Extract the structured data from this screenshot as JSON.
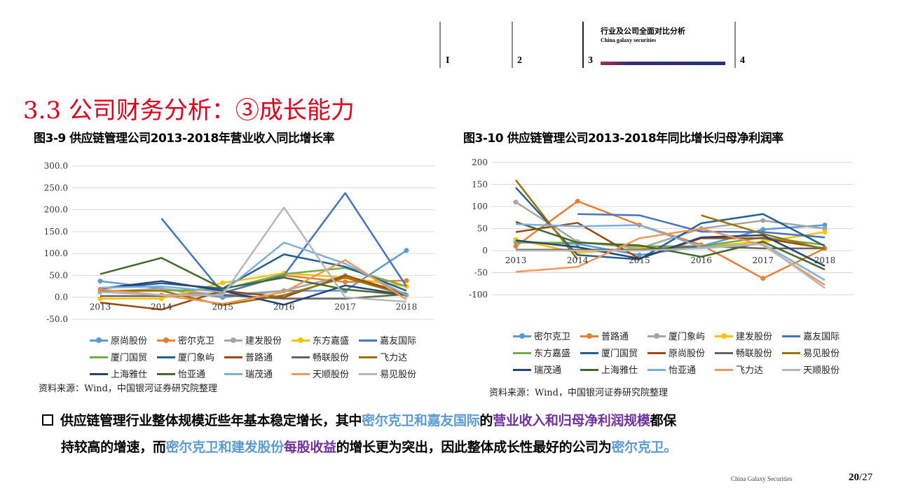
{
  "header": {
    "sections": [
      "I",
      "2",
      "3",
      "4"
    ],
    "active_title": "行业及公司全面对比分析",
    "active_subtitle": "China galaxy securities"
  },
  "title": "3.3 公司财务分析：③成长能力",
  "colors": {
    "title": "#e3001b",
    "highlight_blue": "#5b9bd5",
    "highlight_purple": "#7030a0"
  },
  "chart_data": [
    {
      "type": "line",
      "title": "图3-9 供应链管理公司2013-2018年营业收入同比增长率",
      "x": [
        "2013",
        "2014",
        "2015",
        "2016",
        "2017",
        "2018"
      ],
      "ylim": [
        -50,
        300
      ],
      "yticks": [
        "300.0",
        "250.0",
        "200.0",
        "150.0",
        "100.0",
        "50.0",
        "0.0",
        "-50.0"
      ],
      "grid": true,
      "legend": "bottom",
      "series": [
        {
          "name": "原尚股份",
          "color": "#5B9BD5",
          "marker": true,
          "values": [
            37,
            20,
            0,
            15,
            15,
            107
          ]
        },
        {
          "name": "密尔克卫",
          "color": "#ED7D31",
          "marker": true,
          "values": [
            18,
            5,
            10,
            50,
            35,
            38
          ]
        },
        {
          "name": "建发股份",
          "color": "#A5A5A5",
          "marker": true,
          "values": [
            12,
            20,
            5,
            15,
            50,
            5
          ]
        },
        {
          "name": "东方嘉盛",
          "color": "#FFC000",
          "marker": true,
          "values": [
            -3,
            -3,
            33,
            55,
            45,
            25
          ]
        },
        {
          "name": "嘉友国际",
          "color": "#4472C4",
          "values": [
            null,
            180,
            10,
            50,
            238,
            25
          ]
        },
        {
          "name": "厦门国贸",
          "color": "#70AD47",
          "values": [
            15,
            15,
            18,
            53,
            67,
            25
          ]
        },
        {
          "name": "厦门象屿",
          "color": "#255E91",
          "values": [
            20,
            32,
            20,
            98,
            70,
            15
          ]
        },
        {
          "name": "普路通",
          "color": "#9E480E",
          "values": [
            -12,
            -28,
            15,
            0,
            50,
            8
          ]
        },
        {
          "name": "畅联股份",
          "color": "#636363",
          "values": [
            3,
            3,
            5,
            -3,
            -3,
            7
          ]
        },
        {
          "name": "飞力达",
          "color": "#997300",
          "values": [
            15,
            15,
            -18,
            5,
            45,
            5
          ]
        },
        {
          "name": "上海雅仕",
          "color": "#264478",
          "values": [
            20,
            37,
            15,
            -17,
            27,
            5
          ]
        },
        {
          "name": "怡亚通",
          "color": "#43682B",
          "values": [
            53,
            90,
            20,
            45,
            18,
            5
          ]
        },
        {
          "name": "瑞茂通",
          "color": "#7CAFDD",
          "values": [
            22,
            25,
            12,
            125,
            77,
            5
          ]
        },
        {
          "name": "天顺股份",
          "color": "#F1975A",
          "values": [
            18,
            5,
            -15,
            12,
            85,
            -5
          ]
        },
        {
          "name": "易见股份",
          "color": "#B7B7B7",
          "values": [
            12,
            5,
            5,
            205,
            0,
            -10
          ]
        }
      ],
      "source": "资料来源：Wind，中国银河证券研究院整理"
    },
    {
      "type": "line",
      "title": "图3-10 供应链管理公司2013-2018年同比增长归母净利润率",
      "x": [
        "2013",
        "2014",
        "2015",
        "2016",
        "2017",
        "2018"
      ],
      "ylim": [
        -100,
        200
      ],
      "yticks": [
        "200",
        "150",
        "100",
        "50",
        "0",
        "-50",
        "-100"
      ],
      "grid": true,
      "legend": "bottom",
      "series": [
        {
          "name": "密尔克卫",
          "color": "#5B9BD5",
          "marker": true,
          "values": [
            20,
            15,
            -10,
            10,
            48,
            58
          ]
        },
        {
          "name": "普路通",
          "color": "#ED7D31",
          "marker": true,
          "values": [
            10,
            112,
            58,
            13,
            -63,
            5
          ]
        },
        {
          "name": "厦门象屿",
          "color": "#A5A5A5",
          "marker": true,
          "values": [
            110,
            20,
            5,
            50,
            68,
            50
          ]
        },
        {
          "name": "建发股份",
          "color": "#FFC000",
          "marker": true,
          "values": [
            25,
            -5,
            5,
            10,
            20,
            42
          ]
        },
        {
          "name": "嘉友国际",
          "color": "#4472C4",
          "values": [
            null,
            83,
            80,
            43,
            42,
            30
          ]
        },
        {
          "name": "东方嘉盛",
          "color": "#70AD47",
          "values": [
            18,
            18,
            10,
            10,
            30,
            13
          ]
        },
        {
          "name": "厦门国贸",
          "color": "#255E91",
          "values": [
            143,
            -10,
            -20,
            62,
            83,
            10
          ]
        },
        {
          "name": "原尚股份",
          "color": "#9E480E",
          "values": [
            42,
            63,
            -18,
            28,
            28,
            5
          ]
        },
        {
          "name": "畅联股份",
          "color": "#636363",
          "values": [
            2,
            2,
            2,
            10,
            5,
            5
          ]
        },
        {
          "name": "易见股份",
          "color": "#997300",
          "values": [
            160,
            -20,
            null,
            80,
            38,
            3
          ]
        },
        {
          "name": "瑞茂通",
          "color": "#264478",
          "values": [
            23,
            8,
            -18,
            30,
            35,
            -35
          ]
        },
        {
          "name": "上海雅仕",
          "color": "#43682B",
          "values": [
            65,
            18,
            12,
            -14,
            20,
            -43
          ]
        },
        {
          "name": "怡亚通",
          "color": "#7CAFDD",
          "values": [
            60,
            55,
            58,
            8,
            15,
            -67
          ]
        },
        {
          "name": "飞力达",
          "color": "#F1975A",
          "values": [
            -48,
            -37,
            28,
            50,
            12,
            -78
          ]
        },
        {
          "name": "天顺股份",
          "color": "#B7B7B7",
          "values": [
            0,
            0,
            0,
            5,
            15,
            -85
          ]
        }
      ],
      "source": "资料来源：Wind，中国银河证券研究院整理"
    }
  ],
  "body": {
    "p1": "供应链管理行业整体规模近些年基本稳定增长，其中",
    "h1": "密尔克卫和嘉友国际",
    "p2": "的",
    "h2": "营业收入和归母净利润规模",
    "p3": "都保",
    "p4": "持较高的增速，而",
    "h3": "密尔克卫和建发股份",
    "h4": "每股收益",
    "p5": "的增长更为突出，因此整体成长性最好的公司为",
    "h5": "密尔克卫。"
  },
  "footer": {
    "brand": "China Galaxy Securities",
    "page": "20",
    "total": "/27"
  }
}
